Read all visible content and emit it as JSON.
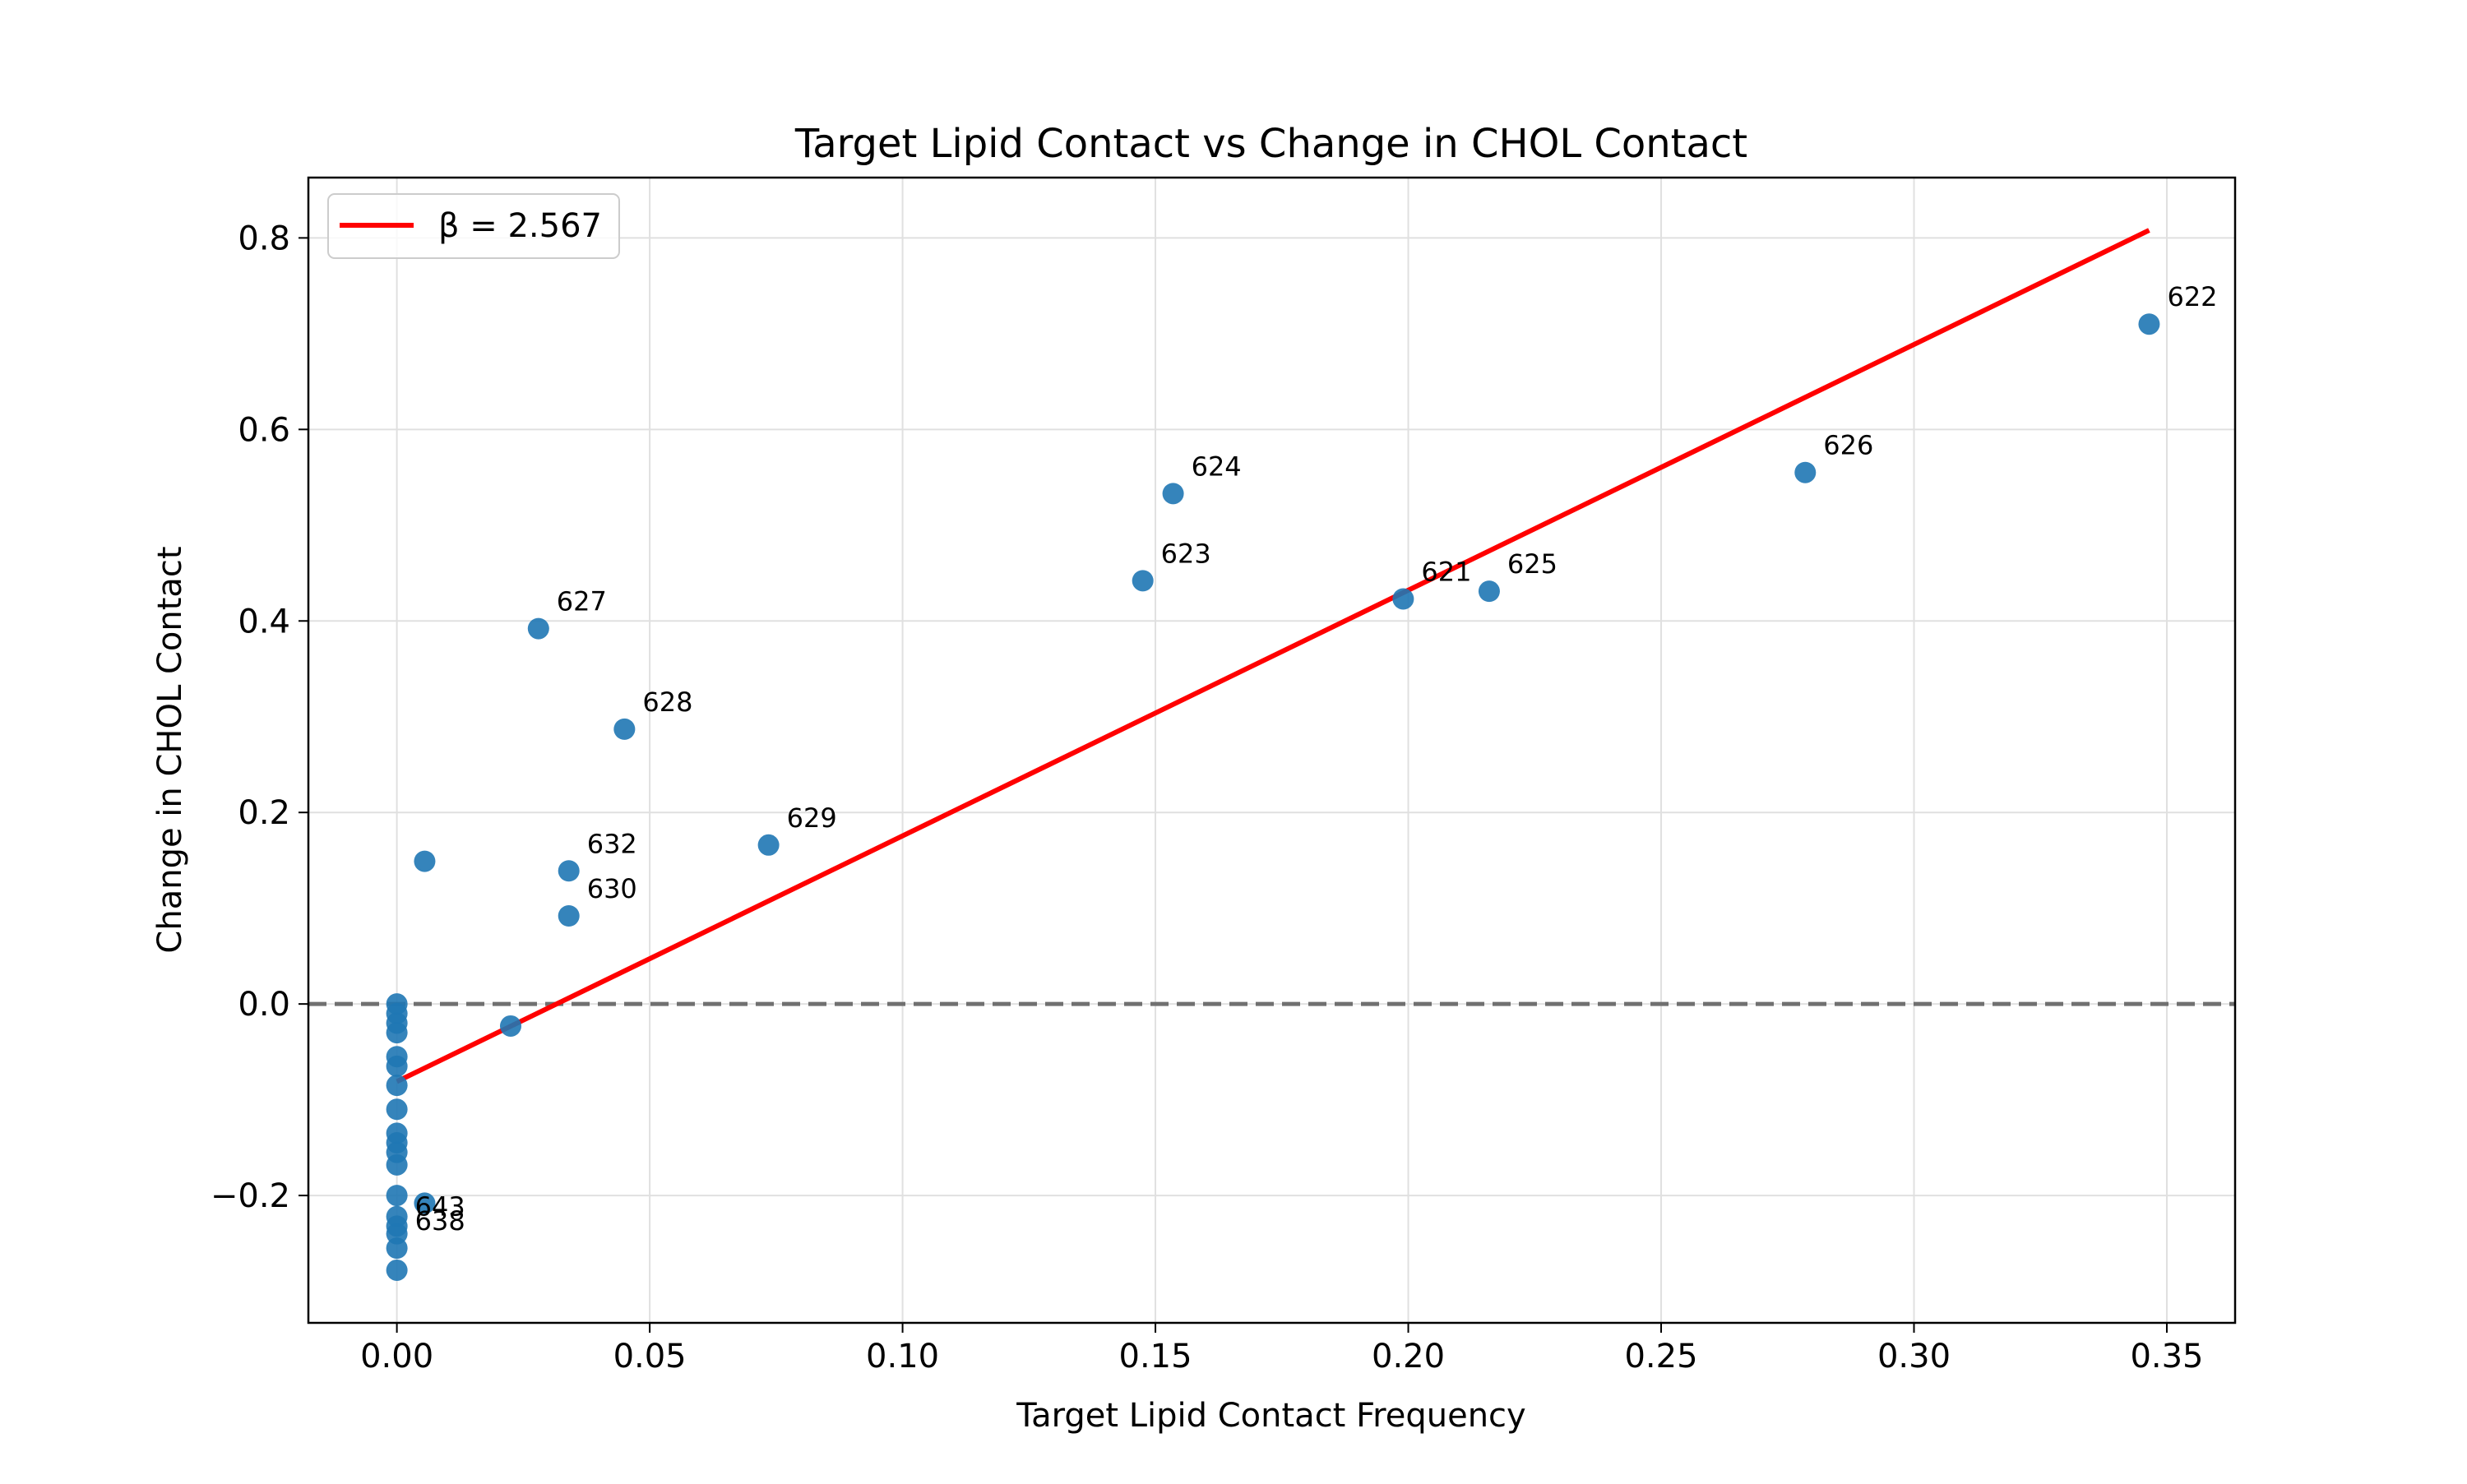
{
  "chart_data": {
    "type": "scatter",
    "title": "Target Lipid Contact vs Change in CHOL Contact",
    "xlabel": "Target Lipid Contact Frequency",
    "ylabel": "Change in CHOL Contact",
    "xlim": [
      -0.0175,
      0.3635
    ],
    "ylim": [
      -0.333,
      0.863
    ],
    "grid": true,
    "legend": {
      "placement": "top-left",
      "entries": [
        {
          "label": "β = 2.567",
          "color": "#ff0000",
          "kind": "line"
        }
      ]
    },
    "x_ticks": [
      {
        "value": 0.0,
        "label": "0.00"
      },
      {
        "value": 0.05,
        "label": "0.05"
      },
      {
        "value": 0.1,
        "label": "0.10"
      },
      {
        "value": 0.15,
        "label": "0.15"
      },
      {
        "value": 0.2,
        "label": "0.20"
      },
      {
        "value": 0.25,
        "label": "0.25"
      },
      {
        "value": 0.3,
        "label": "0.30"
      },
      {
        "value": 0.35,
        "label": "0.35"
      }
    ],
    "y_ticks": [
      {
        "value": -0.2,
        "label": "−0.2"
      },
      {
        "value": 0.0,
        "label": "0.0"
      },
      {
        "value": 0.2,
        "label": "0.2"
      },
      {
        "value": 0.4,
        "label": "0.4"
      },
      {
        "value": 0.6,
        "label": "0.6"
      },
      {
        "value": 0.8,
        "label": "0.8"
      }
    ],
    "reference_line": {
      "y": 0.0,
      "style": "dashed",
      "color": "#707070"
    },
    "fit_line": {
      "label": "β = 2.567",
      "color": "#ff0000",
      "points": [
        [
          0.0,
          -0.081
        ],
        [
          0.3465,
          0.808
        ]
      ]
    },
    "series": [
      {
        "color": "#1f77b4",
        "points": [
          {
            "x": 0.3465,
            "y": 0.71,
            "label": "622"
          },
          {
            "x": 0.2785,
            "y": 0.555,
            "label": "626"
          },
          {
            "x": 0.1535,
            "y": 0.533,
            "label": "624"
          },
          {
            "x": 0.1475,
            "y": 0.442,
            "label": "623"
          },
          {
            "x": 0.199,
            "y": 0.423,
            "label": "621"
          },
          {
            "x": 0.216,
            "y": 0.431,
            "label": "625"
          },
          {
            "x": 0.028,
            "y": 0.392,
            "label": "627"
          },
          {
            "x": 0.045,
            "y": 0.287,
            "label": "628"
          },
          {
            "x": 0.0735,
            "y": 0.166,
            "label": "629"
          },
          {
            "x": 0.034,
            "y": 0.139,
            "label": "632"
          },
          {
            "x": 0.034,
            "y": 0.092,
            "label": "630"
          },
          {
            "x": 0.0055,
            "y": 0.149
          },
          {
            "x": 0.0225,
            "y": -0.023
          },
          {
            "x": 0.0055,
            "y": -0.208
          },
          {
            "x": 0.0,
            "y": 0.0
          },
          {
            "x": 0.0,
            "y": -0.01
          },
          {
            "x": 0.0,
            "y": -0.02
          },
          {
            "x": 0.0,
            "y": -0.03
          },
          {
            "x": 0.0,
            "y": -0.055
          },
          {
            "x": 0.0,
            "y": -0.065
          },
          {
            "x": 0.0,
            "y": -0.085
          },
          {
            "x": 0.0,
            "y": -0.11
          },
          {
            "x": 0.0,
            "y": -0.135
          },
          {
            "x": 0.0,
            "y": -0.145
          },
          {
            "x": 0.0,
            "y": -0.155
          },
          {
            "x": 0.0,
            "y": -0.168
          },
          {
            "x": 0.0,
            "y": -0.2
          },
          {
            "x": 0.0,
            "y": -0.222
          },
          {
            "x": 0.0,
            "y": -0.232
          },
          {
            "x": 0.0,
            "y": -0.24,
            "label": "643"
          },
          {
            "x": 0.0,
            "y": -0.255,
            "label": "638"
          },
          {
            "x": 0.0,
            "y": -0.278
          }
        ]
      }
    ]
  }
}
